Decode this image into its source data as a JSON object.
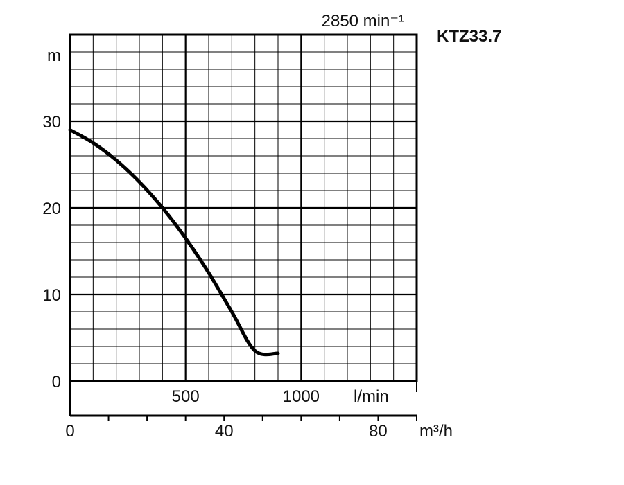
{
  "chart_data": {
    "type": "line",
    "title": "KTZ33.7",
    "subtitle": "2850 min⁻¹",
    "ylabel": "m",
    "ylim": [
      0,
      40
    ],
    "yticks": [
      0,
      10,
      20,
      30
    ],
    "xlim": [
      0,
      1500
    ],
    "x_unit_lmin": "l/min",
    "xticks_lmin": [
      500,
      1000
    ],
    "x_unit_m3h": "m³/h",
    "xticks_m3h": [
      0,
      40,
      80
    ],
    "grid": true,
    "series": [
      {
        "x": [
          0,
          100,
          200,
          300,
          400,
          500,
          600,
          700,
          800,
          900
        ],
        "y": [
          29,
          27.5,
          25.5,
          23,
          20,
          16.5,
          12.5,
          8,
          3.5,
          3.2
        ]
      }
    ]
  }
}
